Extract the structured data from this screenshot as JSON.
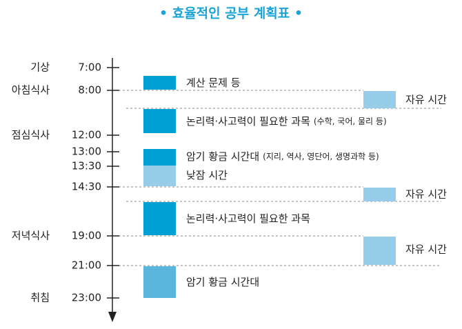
{
  "title": "• 효율적인 공부 계획표 •",
  "time_axis": [
    {
      "event": "기상",
      "time": "7:00"
    },
    {
      "event": "아침식사",
      "time": "8:00"
    },
    {
      "event": "점심식사",
      "time": "12:00"
    },
    {
      "event": null,
      "time": "13:00"
    },
    {
      "event": null,
      "time": "13:30"
    },
    {
      "event": null,
      "time": "14:30"
    },
    {
      "event": "저녁식사",
      "time": "19:00"
    },
    {
      "event": null,
      "time": "21:00"
    },
    {
      "event": "취침",
      "time": "23:00"
    }
  ],
  "study_blocks": [
    {
      "label": "계산 문제 등",
      "note": null
    },
    {
      "label": "논리력·사고력이 필요한 과목",
      "note": "(수학, 국어, 물리 등)"
    },
    {
      "label": "암기 황금 시간대",
      "note": "(지리, 역사, 영단어, 생명과학 등)"
    },
    {
      "label": "낮잠 시간",
      "note": null
    },
    {
      "label": "논리력·사고력이 필요한 과목",
      "note": null
    },
    {
      "label": "암기 황금 시간대",
      "note": null
    }
  ],
  "free_blocks": [
    "자유 시간",
    "자유 시간",
    "자유 시간"
  ]
}
